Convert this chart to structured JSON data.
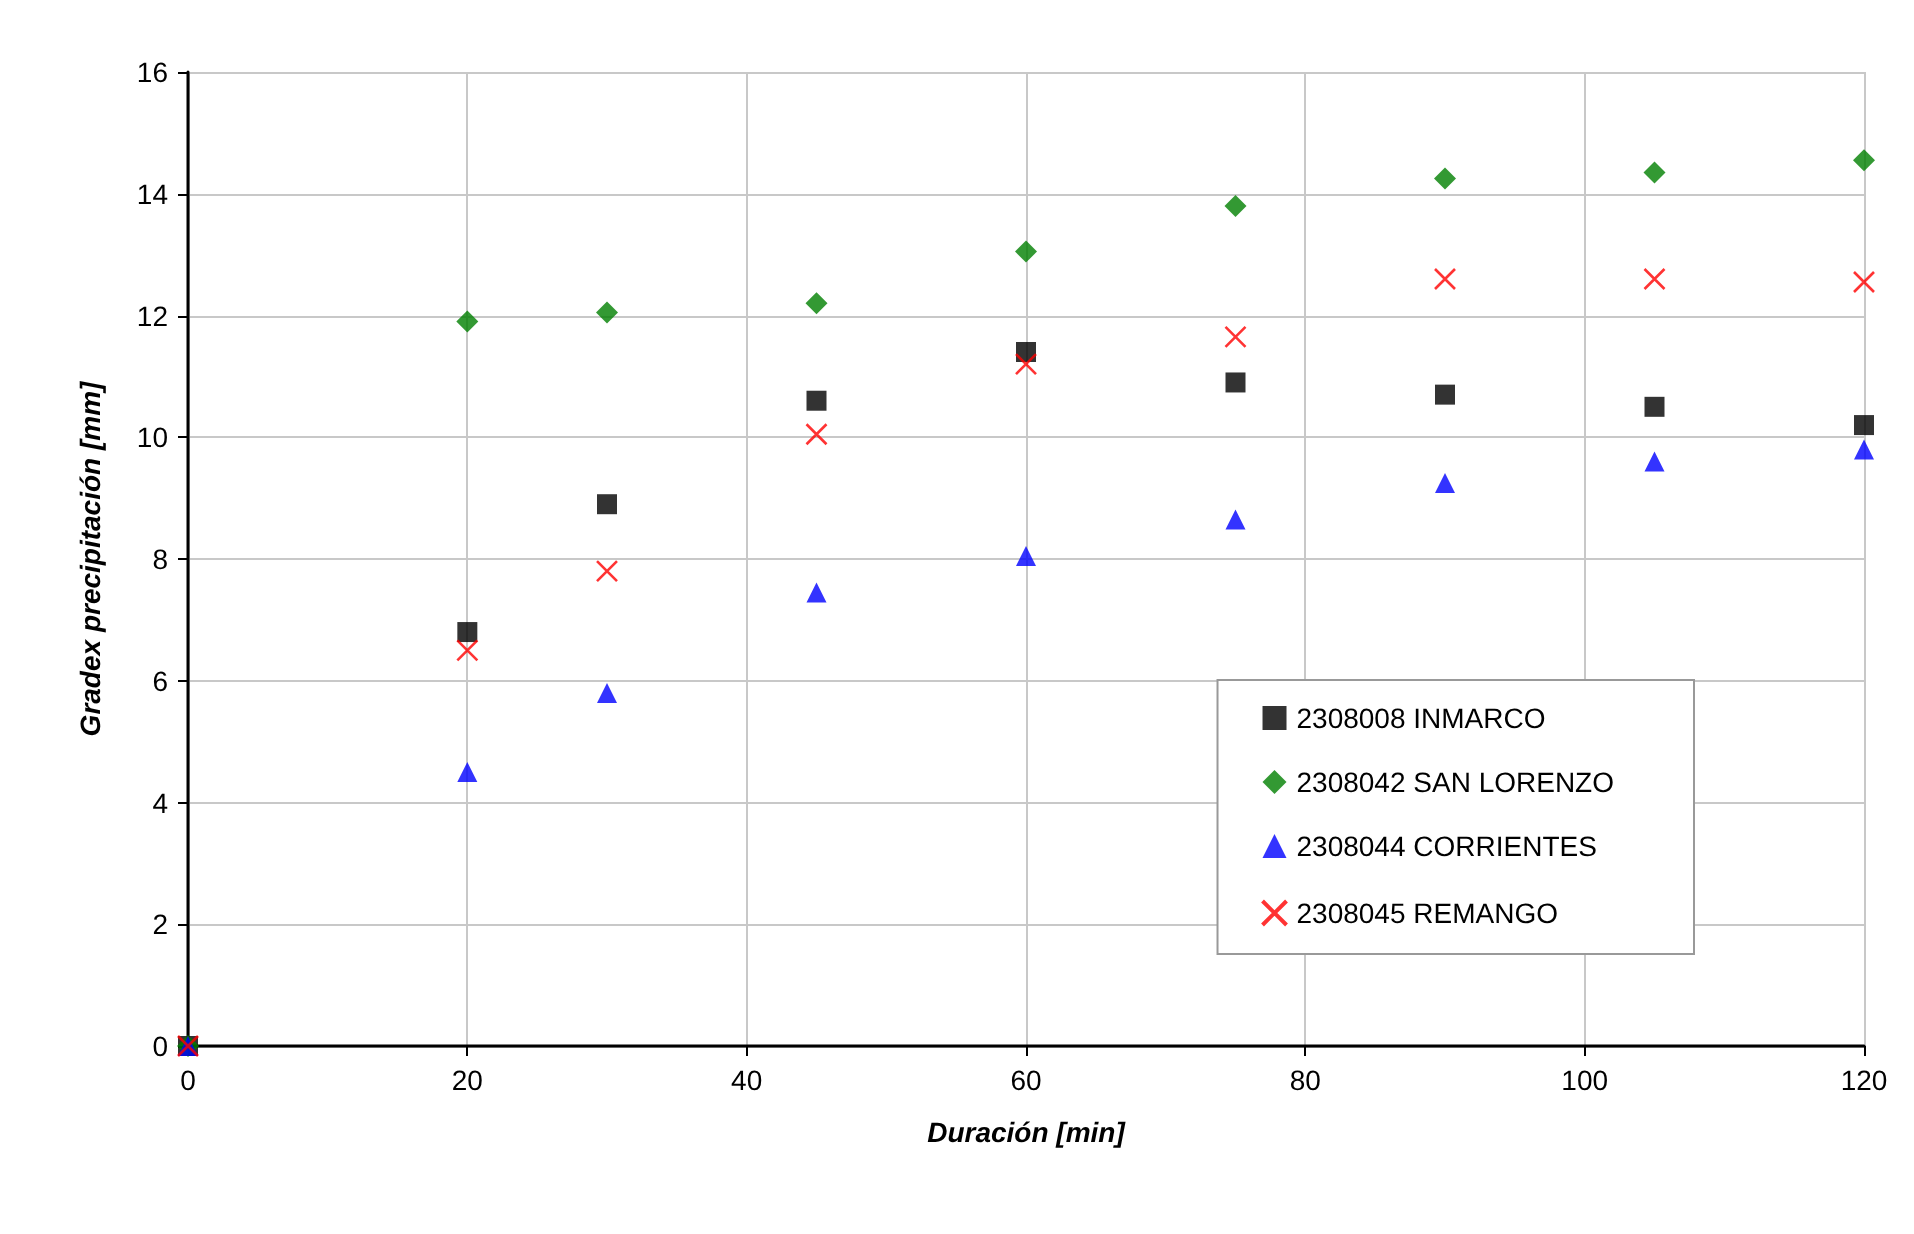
{
  "chart_data": {
    "type": "scatter",
    "xlabel": "Duración [min]",
    "ylabel": "Gradex precipitación [mm]",
    "x": [
      0,
      20,
      30,
      45,
      60,
      75,
      90,
      105,
      120
    ],
    "series": [
      {
        "name": "2308008 INMARCO",
        "color": "#000000",
        "marker": "square",
        "values": [
          0,
          6.8,
          8.9,
          10.6,
          11.4,
          10.9,
          10.7,
          10.5,
          10.2
        ]
      },
      {
        "name": "2308042 SAN LORENZO",
        "color": "#008000",
        "marker": "diamond",
        "values": [
          0,
          11.9,
          12.05,
          12.2,
          13.05,
          13.8,
          14.25,
          14.35,
          14.55
        ]
      },
      {
        "name": "2308044 CORRIENTES",
        "color": "#0000ff",
        "marker": "triangle",
        "values": [
          0,
          4.5,
          5.8,
          7.45,
          8.05,
          8.65,
          9.25,
          9.6,
          9.8
        ]
      },
      {
        "name": "2308045 REMANGO",
        "color": "#ff0000",
        "marker": "cross",
        "values": [
          0,
          6.5,
          7.8,
          10.05,
          11.2,
          11.65,
          12.6,
          12.6,
          12.55
        ]
      }
    ],
    "xlim": [
      0,
      120
    ],
    "xticks": [
      0,
      20,
      40,
      60,
      80,
      100,
      120
    ],
    "ylim": [
      0,
      16
    ],
    "yticks": [
      0,
      2,
      4,
      6,
      8,
      10,
      12,
      14,
      16
    ],
    "grid": true,
    "legend": "bottom right"
  }
}
